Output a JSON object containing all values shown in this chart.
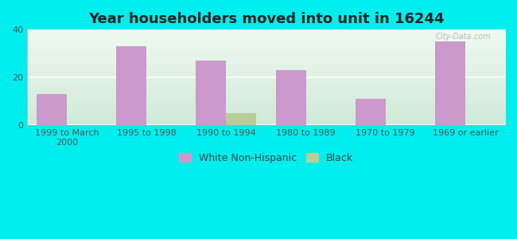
{
  "title": "Year householders moved into unit in 16244",
  "categories": [
    "1999 to March\n2000",
    "1995 to 1998",
    "1990 to 1994",
    "1980 to 1989",
    "1970 to 1979",
    "1969 or earlier"
  ],
  "white_values": [
    13,
    33,
    27,
    23,
    11,
    35
  ],
  "black_values": [
    0,
    0,
    5,
    0,
    0,
    0
  ],
  "white_color": "#cc99cc",
  "black_color": "#bbcc99",
  "ylim": [
    0,
    40
  ],
  "yticks": [
    0,
    20,
    40
  ],
  "background_color": "#00eeee",
  "grad_top_color": "#f0faf0",
  "grad_bottom_color": "#d0ead8",
  "bar_width": 0.38,
  "title_fontsize": 13,
  "legend_fontsize": 9,
  "tick_fontsize": 8,
  "watermark": "City-Data.com"
}
